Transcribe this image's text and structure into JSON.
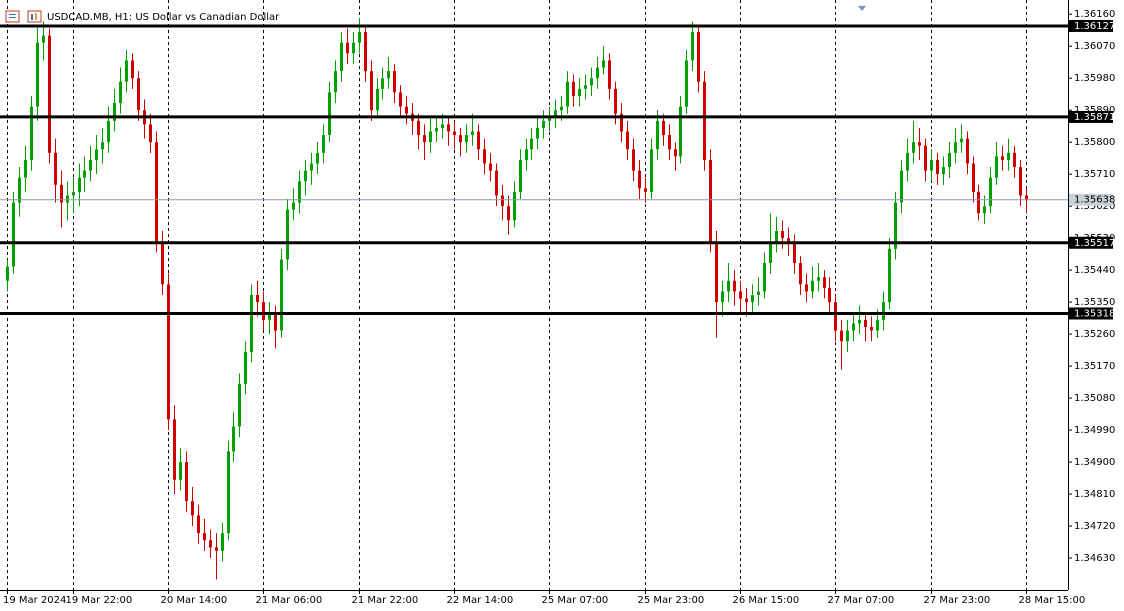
{
  "chart_data": {
    "type": "candlestick",
    "title": "USDCAD.MB, H1:  US Dollar vs Canadian Dollar",
    "up_color": "#00a000",
    "down_color": "#d00000",
    "level_color": "#000000",
    "price_line_color": "#8a9aaa",
    "ylim": [
      1.3454,
      1.362
    ],
    "yticks": [
      {
        "value": 1.3616,
        "label": "1.36160"
      },
      {
        "value": 1.3607,
        "label": "1.36070"
      },
      {
        "value": 1.3598,
        "label": "1.35980"
      },
      {
        "value": 1.3589,
        "label": "1.35890"
      },
      {
        "value": 1.358,
        "label": "1.35800"
      },
      {
        "value": 1.3571,
        "label": "1.35710"
      },
      {
        "value": 1.3562,
        "label": "1.35620"
      },
      {
        "value": 1.3553,
        "label": "1.35530"
      },
      {
        "value": 1.3544,
        "label": "1.35440"
      },
      {
        "value": 1.3535,
        "label": "1.35350"
      },
      {
        "value": 1.3526,
        "label": "1.35260"
      },
      {
        "value": 1.3517,
        "label": "1.35170"
      },
      {
        "value": 1.3508,
        "label": "1.35080"
      },
      {
        "value": 1.3499,
        "label": "1.34990"
      },
      {
        "value": 1.349,
        "label": "1.34900"
      },
      {
        "value": 1.3481,
        "label": "1.34810"
      },
      {
        "value": 1.3472,
        "label": "1.34720"
      },
      {
        "value": 1.3463,
        "label": "1.34630"
      }
    ],
    "xticks": [
      {
        "value": 0,
        "label": "19 Mar 2024"
      },
      {
        "value": 11,
        "label": "19 Mar 22:00"
      },
      {
        "value": 27,
        "label": "20 Mar 14:00"
      },
      {
        "value": 43,
        "label": "21 Mar 06:00"
      },
      {
        "value": 59,
        "label": "21 Mar 22:00"
      },
      {
        "value": 75,
        "label": "22 Mar 14:00"
      },
      {
        "value": 91,
        "label": "25 Mar 07:00"
      },
      {
        "value": 107,
        "label": "25 Mar 23:00"
      },
      {
        "value": 123,
        "label": "26 Mar 15:00"
      },
      {
        "value": 139,
        "label": "27 Mar 07:00"
      },
      {
        "value": 155,
        "label": "27 Mar 23:00"
      },
      {
        "value": 171,
        "label": "28 Mar 15:00"
      }
    ],
    "levels": [
      1.36127,
      1.35871,
      1.35517,
      1.35318
    ],
    "current_price": 1.35638,
    "candles": [
      [
        1.3541,
        1.3547,
        1.3538,
        1.3545
      ],
      [
        1.3545,
        1.3566,
        1.3543,
        1.3563
      ],
      [
        1.3563,
        1.3573,
        1.3559,
        1.357
      ],
      [
        1.357,
        1.3579,
        1.3566,
        1.3575
      ],
      [
        1.3575,
        1.3593,
        1.3572,
        1.359
      ],
      [
        1.359,
        1.3613,
        1.3586,
        1.3608
      ],
      [
        1.3608,
        1.3614,
        1.3603,
        1.361
      ],
      [
        1.361,
        1.3612,
        1.3574,
        1.3577
      ],
      [
        1.3577,
        1.3581,
        1.3563,
        1.3568
      ],
      [
        1.3568,
        1.3572,
        1.3556,
        1.3563
      ],
      [
        1.3563,
        1.3569,
        1.3558,
        1.3565
      ],
      [
        1.3565,
        1.357,
        1.356,
        1.3566
      ],
      [
        1.3566,
        1.3574,
        1.3562,
        1.357
      ],
      [
        1.357,
        1.3576,
        1.3566,
        1.3572
      ],
      [
        1.3572,
        1.3579,
        1.3569,
        1.3575
      ],
      [
        1.3575,
        1.3582,
        1.3571,
        1.3578
      ],
      [
        1.3578,
        1.3584,
        1.3574,
        1.358
      ],
      [
        1.358,
        1.359,
        1.3577,
        1.3586
      ],
      [
        1.3586,
        1.3595,
        1.3583,
        1.3591
      ],
      [
        1.3591,
        1.3601,
        1.3588,
        1.3597
      ],
      [
        1.3597,
        1.3606,
        1.3594,
        1.3603
      ],
      [
        1.3603,
        1.3605,
        1.3595,
        1.3598
      ],
      [
        1.3598,
        1.36,
        1.3586,
        1.3589
      ],
      [
        1.3589,
        1.3592,
        1.3581,
        1.3585
      ],
      [
        1.3585,
        1.3588,
        1.3577,
        1.358
      ],
      [
        1.358,
        1.3583,
        1.3549,
        1.3552
      ],
      [
        1.3552,
        1.3555,
        1.3537,
        1.354
      ],
      [
        1.354,
        1.3543,
        1.3499,
        1.3502
      ],
      [
        1.3502,
        1.3506,
        1.3481,
        1.3485
      ],
      [
        1.3485,
        1.3494,
        1.3482,
        1.349
      ],
      [
        1.349,
        1.3493,
        1.3476,
        1.3479
      ],
      [
        1.3479,
        1.3483,
        1.3472,
        1.3475
      ],
      [
        1.3475,
        1.3478,
        1.3467,
        1.347
      ],
      [
        1.347,
        1.3474,
        1.3465,
        1.3468
      ],
      [
        1.3468,
        1.3471,
        1.3463,
        1.3466
      ],
      [
        1.3466,
        1.347,
        1.3457,
        1.3465
      ],
      [
        1.3465,
        1.3473,
        1.3462,
        1.347
      ],
      [
        1.347,
        1.3496,
        1.3468,
        1.3493
      ],
      [
        1.3493,
        1.3504,
        1.349,
        1.35
      ],
      [
        1.35,
        1.3515,
        1.3497,
        1.3512
      ],
      [
        1.3512,
        1.3524,
        1.3509,
        1.3521
      ],
      [
        1.3521,
        1.354,
        1.3518,
        1.3537
      ],
      [
        1.3537,
        1.3541,
        1.3531,
        1.3535
      ],
      [
        1.3535,
        1.3538,
        1.3527,
        1.353
      ],
      [
        1.353,
        1.3535,
        1.3526,
        1.3532
      ],
      [
        1.3532,
        1.3534,
        1.3522,
        1.3527
      ],
      [
        1.3527,
        1.355,
        1.3525,
        1.3547
      ],
      [
        1.3547,
        1.3564,
        1.3544,
        1.3561
      ],
      [
        1.3561,
        1.3567,
        1.3558,
        1.3563
      ],
      [
        1.3563,
        1.3572,
        1.356,
        1.3569
      ],
      [
        1.3569,
        1.3575,
        1.3565,
        1.3572
      ],
      [
        1.3572,
        1.3577,
        1.3568,
        1.3574
      ],
      [
        1.3574,
        1.358,
        1.3571,
        1.3577
      ],
      [
        1.3577,
        1.3585,
        1.3574,
        1.3582
      ],
      [
        1.3582,
        1.3597,
        1.358,
        1.3594
      ],
      [
        1.3594,
        1.3603,
        1.3591,
        1.36
      ],
      [
        1.36,
        1.3611,
        1.3597,
        1.3608
      ],
      [
        1.3608,
        1.3612,
        1.3602,
        1.3605
      ],
      [
        1.3605,
        1.3611,
        1.3602,
        1.3608
      ],
      [
        1.3608,
        1.3615,
        1.3605,
        1.3611
      ],
      [
        1.3611,
        1.3613,
        1.3597,
        1.36
      ],
      [
        1.36,
        1.3603,
        1.3586,
        1.3589
      ],
      [
        1.3589,
        1.3598,
        1.3587,
        1.3595
      ],
      [
        1.3595,
        1.3601,
        1.3592,
        1.3598
      ],
      [
        1.3598,
        1.3604,
        1.3595,
        1.36
      ],
      [
        1.36,
        1.3602,
        1.3591,
        1.3594
      ],
      [
        1.3594,
        1.3596,
        1.3587,
        1.359
      ],
      [
        1.359,
        1.3593,
        1.3585,
        1.3588
      ],
      [
        1.3588,
        1.3591,
        1.3582,
        1.3586
      ],
      [
        1.3586,
        1.3588,
        1.3578,
        1.3582
      ],
      [
        1.3582,
        1.3585,
        1.3575,
        1.358
      ],
      [
        1.358,
        1.3587,
        1.3577,
        1.3583
      ],
      [
        1.3583,
        1.3587,
        1.358,
        1.3584
      ],
      [
        1.3584,
        1.3588,
        1.3581,
        1.3585
      ],
      [
        1.3585,
        1.3587,
        1.3579,
        1.3583
      ],
      [
        1.3583,
        1.3586,
        1.3578,
        1.3582
      ],
      [
        1.3582,
        1.3584,
        1.3576,
        1.358
      ],
      [
        1.358,
        1.3585,
        1.3577,
        1.3582
      ],
      [
        1.3582,
        1.3588,
        1.3579,
        1.3583
      ],
      [
        1.3583,
        1.3585,
        1.3575,
        1.3578
      ],
      [
        1.3578,
        1.3581,
        1.3571,
        1.3574
      ],
      [
        1.3574,
        1.3577,
        1.3569,
        1.3572
      ],
      [
        1.3572,
        1.3574,
        1.3562,
        1.3565
      ],
      [
        1.3565,
        1.3568,
        1.3558,
        1.3562
      ],
      [
        1.3562,
        1.3565,
        1.3554,
        1.3558
      ],
      [
        1.3558,
        1.3569,
        1.3556,
        1.3566
      ],
      [
        1.3566,
        1.3578,
        1.3564,
        1.3575
      ],
      [
        1.3575,
        1.3581,
        1.3572,
        1.3578
      ],
      [
        1.3578,
        1.3584,
        1.3575,
        1.3581
      ],
      [
        1.3581,
        1.3587,
        1.3578,
        1.3584
      ],
      [
        1.3584,
        1.3589,
        1.3581,
        1.3586
      ],
      [
        1.3586,
        1.359,
        1.3583,
        1.3587
      ],
      [
        1.3587,
        1.3592,
        1.3584,
        1.3589
      ],
      [
        1.3589,
        1.3593,
        1.3586,
        1.359
      ],
      [
        1.359,
        1.36,
        1.3588,
        1.3597
      ],
      [
        1.3597,
        1.3599,
        1.359,
        1.3593
      ],
      [
        1.3593,
        1.3598,
        1.359,
        1.3595
      ],
      [
        1.3595,
        1.3599,
        1.3592,
        1.3596
      ],
      [
        1.3596,
        1.3601,
        1.3593,
        1.3598
      ],
      [
        1.3598,
        1.3604,
        1.3595,
        1.3601
      ],
      [
        1.3601,
        1.3607,
        1.3599,
        1.3603
      ],
      [
        1.3603,
        1.3605,
        1.3592,
        1.3595
      ],
      [
        1.3595,
        1.3597,
        1.3585,
        1.3588
      ],
      [
        1.3588,
        1.3591,
        1.358,
        1.3583
      ],
      [
        1.3583,
        1.3586,
        1.3575,
        1.3578
      ],
      [
        1.3578,
        1.3581,
        1.3569,
        1.3572
      ],
      [
        1.3572,
        1.3575,
        1.3564,
        1.3567
      ],
      [
        1.3567,
        1.357,
        1.3563,
        1.3566
      ],
      [
        1.3566,
        1.3581,
        1.3564,
        1.3578
      ],
      [
        1.3578,
        1.3589,
        1.3575,
        1.3586
      ],
      [
        1.3586,
        1.3588,
        1.3579,
        1.3582
      ],
      [
        1.3582,
        1.3585,
        1.3575,
        1.3578
      ],
      [
        1.3578,
        1.358,
        1.3572,
        1.3576
      ],
      [
        1.3576,
        1.3593,
        1.3574,
        1.359
      ],
      [
        1.359,
        1.3606,
        1.3588,
        1.3603
      ],
      [
        1.3603,
        1.3614,
        1.36,
        1.3611
      ],
      [
        1.3611,
        1.3613,
        1.3594,
        1.3597
      ],
      [
        1.3597,
        1.36,
        1.3572,
        1.3575
      ],
      [
        1.3575,
        1.3578,
        1.3549,
        1.3552
      ],
      [
        1.3552,
        1.3555,
        1.3525,
        1.3535
      ],
      [
        1.3535,
        1.3541,
        1.3531,
        1.3538
      ],
      [
        1.3538,
        1.3546,
        1.3535,
        1.3541
      ],
      [
        1.3541,
        1.3544,
        1.3534,
        1.3538
      ],
      [
        1.3538,
        1.3541,
        1.3532,
        1.3536
      ],
      [
        1.3536,
        1.3539,
        1.3531,
        1.3535
      ],
      [
        1.3535,
        1.354,
        1.3532,
        1.3537
      ],
      [
        1.3537,
        1.3542,
        1.3534,
        1.3538
      ],
      [
        1.3538,
        1.3549,
        1.3536,
        1.3546
      ],
      [
        1.3546,
        1.356,
        1.3543,
        1.3552
      ],
      [
        1.3552,
        1.3559,
        1.3549,
        1.3555
      ],
      [
        1.3555,
        1.3558,
        1.355,
        1.3553
      ],
      [
        1.3553,
        1.3556,
        1.3548,
        1.3552
      ],
      [
        1.3552,
        1.3554,
        1.3543,
        1.3546
      ],
      [
        1.3546,
        1.3548,
        1.3537,
        1.354
      ],
      [
        1.354,
        1.3543,
        1.3535,
        1.3538
      ],
      [
        1.3538,
        1.3545,
        1.3536,
        1.3541
      ],
      [
        1.3541,
        1.3546,
        1.3538,
        1.3542
      ],
      [
        1.3542,
        1.3544,
        1.3536,
        1.3539
      ],
      [
        1.3539,
        1.3542,
        1.3532,
        1.3535
      ],
      [
        1.3535,
        1.3537,
        1.3524,
        1.3527
      ],
      [
        1.3527,
        1.353,
        1.3516,
        1.3524
      ],
      [
        1.3524,
        1.353,
        1.3521,
        1.3527
      ],
      [
        1.3527,
        1.3532,
        1.3524,
        1.3529
      ],
      [
        1.3529,
        1.3534,
        1.3526,
        1.353
      ],
      [
        1.353,
        1.3532,
        1.3524,
        1.3528
      ],
      [
        1.3528,
        1.3531,
        1.3524,
        1.3527
      ],
      [
        1.3527,
        1.3533,
        1.3525,
        1.353
      ],
      [
        1.353,
        1.3538,
        1.3527,
        1.3535
      ],
      [
        1.3535,
        1.3553,
        1.3533,
        1.355
      ],
      [
        1.355,
        1.3566,
        1.3547,
        1.3563
      ],
      [
        1.3563,
        1.3575,
        1.356,
        1.3572
      ],
      [
        1.3572,
        1.3581,
        1.3569,
        1.3577
      ],
      [
        1.3577,
        1.3586,
        1.3574,
        1.358
      ],
      [
        1.358,
        1.3584,
        1.3575,
        1.3579
      ],
      [
        1.3579,
        1.3581,
        1.3569,
        1.3572
      ],
      [
        1.3572,
        1.3578,
        1.3569,
        1.3575
      ],
      [
        1.3575,
        1.3577,
        1.3568,
        1.3571
      ],
      [
        1.3571,
        1.3576,
        1.3568,
        1.3573
      ],
      [
        1.3573,
        1.358,
        1.357,
        1.3577
      ],
      [
        1.3577,
        1.3584,
        1.3574,
        1.358
      ],
      [
        1.358,
        1.3585,
        1.3577,
        1.3581
      ],
      [
        1.3581,
        1.3583,
        1.3571,
        1.3574
      ],
      [
        1.3574,
        1.3576,
        1.3563,
        1.3566
      ],
      [
        1.3566,
        1.3568,
        1.3558,
        1.356
      ],
      [
        1.356,
        1.3565,
        1.3557,
        1.3562
      ],
      [
        1.3562,
        1.3573,
        1.356,
        1.357
      ],
      [
        1.357,
        1.358,
        1.3568,
        1.3576
      ],
      [
        1.3576,
        1.3579,
        1.3572,
        1.3575
      ],
      [
        1.3575,
        1.3581,
        1.3572,
        1.3577
      ],
      [
        1.3577,
        1.3579,
        1.357,
        1.3573
      ],
      [
        1.3573,
        1.3575,
        1.3562,
        1.3565
      ],
      [
        1.3565,
        1.3567,
        1.356,
        1.35638
      ]
    ]
  }
}
